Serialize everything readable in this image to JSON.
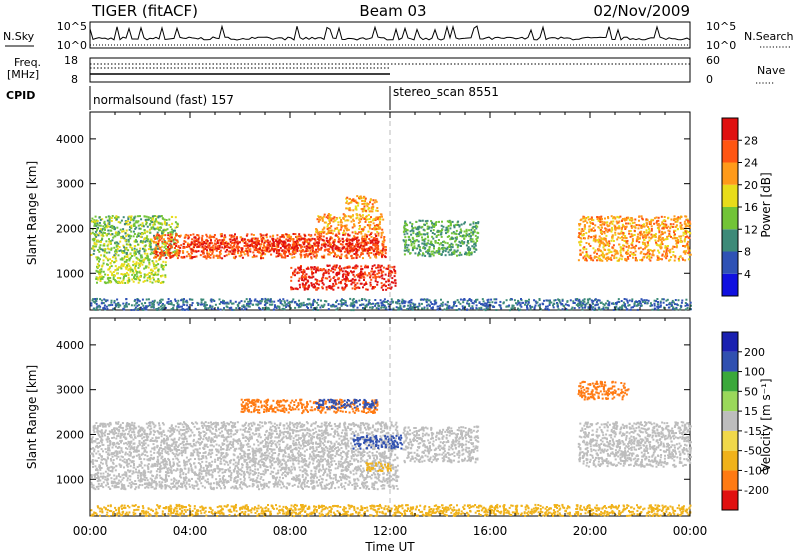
{
  "header": {
    "radar": "TIGER (fitACF)",
    "beam": "Beam 03",
    "date": "02/Nov/2009"
  },
  "status_panel": {
    "nsky_label": "N.Sky",
    "nsky_ticks": [
      "10^5",
      "10^0"
    ],
    "nsearch_label": "N.Search",
    "nsearch_ticks": [
      "10^5",
      "10^0"
    ],
    "freq_label_line1": "Freq.",
    "freq_label_line2": "[MHz]",
    "freq_ticks": [
      "18",
      "8"
    ],
    "nave_label": "Nave",
    "nave_ticks": [
      "60",
      "0"
    ],
    "cpid_label": "CPID",
    "cpid_segments": [
      {
        "label": "normalsound (fast) 157",
        "start_hour": 0,
        "end_hour": 12
      },
      {
        "label": "stereo_scan 8551",
        "start_hour": 12,
        "end_hour": 24
      }
    ]
  },
  "axes": {
    "xlabel": "Time UT",
    "x_ticks": [
      "00:00",
      "04:00",
      "08:00",
      "12:00",
      "16:00",
      "20:00",
      "00:00"
    ],
    "ylabel": "Slant Range [km]",
    "y_ticks": [
      "1000",
      "2000",
      "3000",
      "4000"
    ]
  },
  "colorbars": {
    "power": {
      "label": "Power [dB]",
      "ticks": [
        "4",
        "8",
        "12",
        "16",
        "20",
        "24",
        "28"
      ],
      "colors": [
        "#1010e0",
        "#2f52b5",
        "#3d8a78",
        "#72c437",
        "#e8dc1a",
        "#ff9a1a",
        "#ff5512",
        "#e01010"
      ]
    },
    "velocity": {
      "label": "Velocity [m s⁻¹]",
      "ticks": [
        "-200",
        "-100",
        "-50",
        "-15",
        "15",
        "50",
        "100",
        "200"
      ],
      "colors": [
        "#e01010",
        "#ff7a12",
        "#f0b21a",
        "#f0d84a",
        "#bdbdbd",
        "#9ad85a",
        "#3aa83a",
        "#3050b0",
        "#1a20b0"
      ]
    }
  },
  "chart_data": [
    {
      "type": "heatmap",
      "name": "power",
      "xlabel": "Time UT",
      "ylabel": "Slant Range [km]",
      "xlim": [
        0,
        24
      ],
      "ylim": [
        180,
        4600
      ],
      "colorbar_label": "Power [dB]",
      "colorbar_range": [
        0,
        32
      ],
      "echo_regions": [
        {
          "t0": 0.0,
          "t1": 3.5,
          "r0": 1400,
          "r1": 2300,
          "value": 14
        },
        {
          "t0": 0.2,
          "t1": 3.0,
          "r0": 800,
          "r1": 1400,
          "value": 16
        },
        {
          "t0": 2.5,
          "t1": 11.8,
          "r0": 1350,
          "r1": 1900,
          "value": 26
        },
        {
          "t0": 4.0,
          "t1": 11.5,
          "r0": 1500,
          "r1": 1800,
          "value": 29
        },
        {
          "t0": 8.0,
          "t1": 12.2,
          "r0": 650,
          "r1": 1200,
          "value": 29
        },
        {
          "t0": 9.0,
          "t1": 11.7,
          "r0": 1900,
          "r1": 2350,
          "value": 22
        },
        {
          "t0": 10.2,
          "t1": 11.5,
          "r0": 2400,
          "r1": 2750,
          "value": 22
        },
        {
          "t0": 12.5,
          "t1": 15.5,
          "r0": 1400,
          "r1": 2200,
          "value": 12
        },
        {
          "t0": 19.5,
          "t1": 24.0,
          "r0": 1300,
          "r1": 2300,
          "value": 22
        },
        {
          "t0": 0.0,
          "t1": 24.0,
          "r0": 200,
          "r1": 450,
          "value": 8
        }
      ]
    },
    {
      "type": "heatmap",
      "name": "velocity",
      "xlabel": "Time UT",
      "ylabel": "Slant Range [km]",
      "xlim": [
        0,
        24
      ],
      "ylim": [
        180,
        4600
      ],
      "colorbar_label": "Velocity [m s⁻¹]",
      "colorbar_range": [
        -200,
        200
      ],
      "echo_regions": [
        {
          "t0": 0.0,
          "t1": 12.3,
          "r0": 800,
          "r1": 2300,
          "value": 0
        },
        {
          "t0": 12.5,
          "t1": 15.5,
          "r0": 1400,
          "r1": 2200,
          "value": 0
        },
        {
          "t0": 19.5,
          "t1": 24.0,
          "r0": 1300,
          "r1": 2300,
          "value": 0
        },
        {
          "t0": 6.0,
          "t1": 11.5,
          "r0": 2500,
          "r1": 2800,
          "value": -150
        },
        {
          "t0": 9.0,
          "t1": 11.5,
          "r0": 2600,
          "r1": 2800,
          "value": 150
        },
        {
          "t0": 10.5,
          "t1": 12.5,
          "r0": 1700,
          "r1": 2000,
          "value": 150
        },
        {
          "t0": 19.5,
          "t1": 21.5,
          "r0": 2800,
          "r1": 3200,
          "value": -150
        },
        {
          "t0": 11.0,
          "t1": 12.0,
          "r0": 1200,
          "r1": 1400,
          "value": -80
        },
        {
          "t0": 0.0,
          "t1": 24.0,
          "r0": 200,
          "r1": 450,
          "value": -80
        }
      ]
    }
  ]
}
